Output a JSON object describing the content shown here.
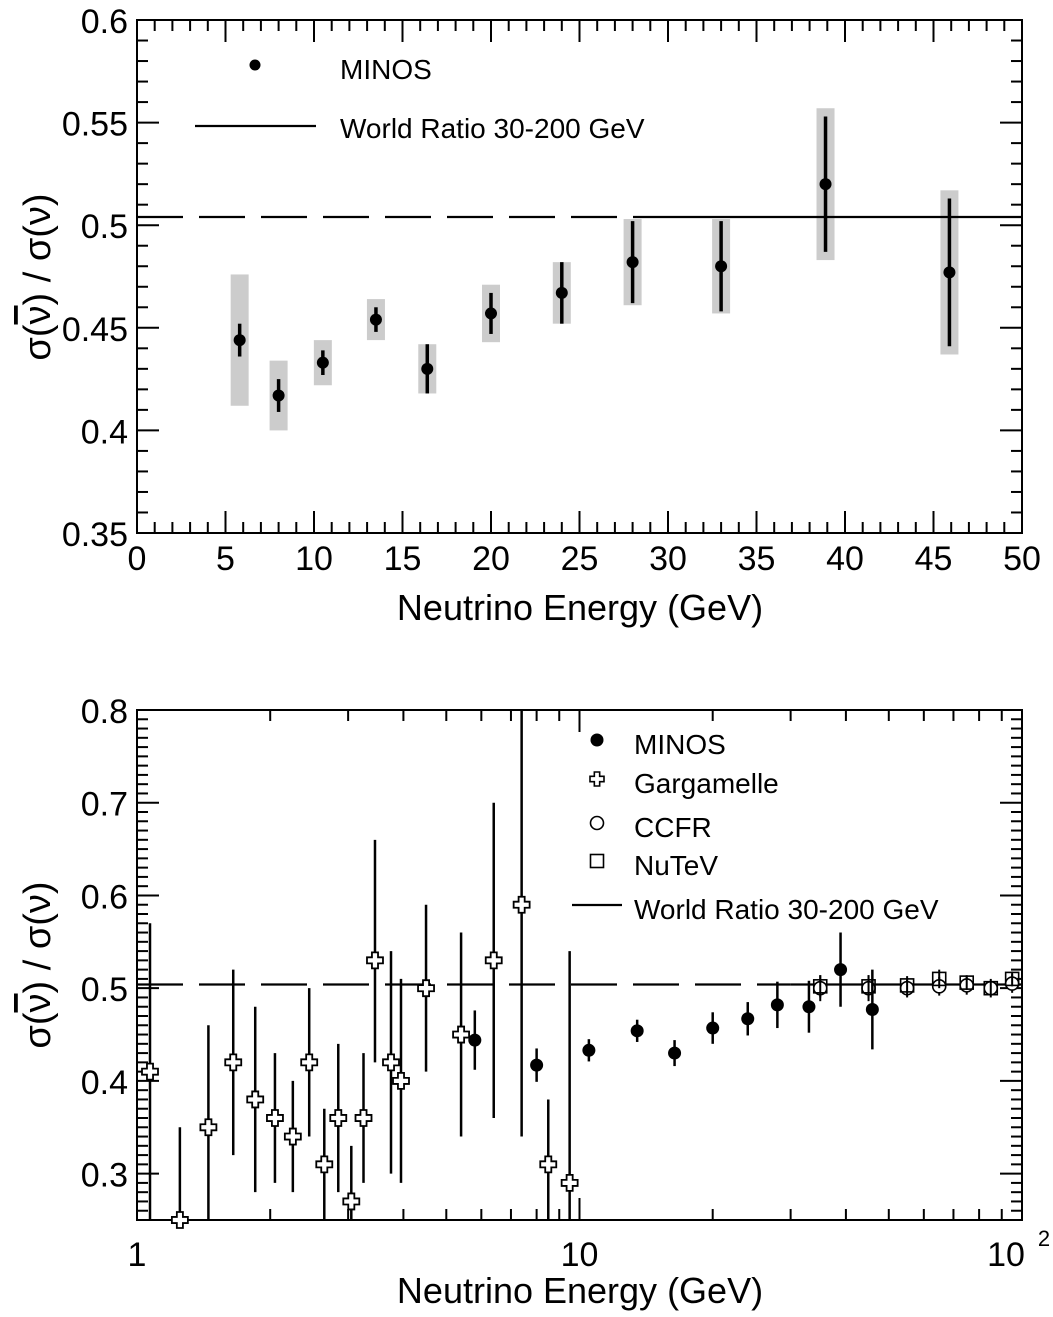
{
  "chart_data": [
    {
      "type": "scatter",
      "xlabel": "Neutrino Energy (GeV)",
      "ylabel_main": "σ(",
      "ylabel_nubar": "ν",
      "ylabel_mid": ") / σ(",
      "ylabel_nu": "ν",
      "ylabel_end": ")",
      "xlim": [
        0,
        50
      ],
      "ylim": [
        0.35,
        0.6
      ],
      "xticks": [
        "0",
        "5",
        "10",
        "15",
        "20",
        "25",
        "30",
        "35",
        "40",
        "45",
        "50"
      ],
      "xtick_values": [
        0,
        5,
        10,
        15,
        20,
        25,
        30,
        35,
        40,
        45,
        50
      ],
      "yticks": [
        "0.35",
        "0.4",
        "0.45",
        "0.5",
        "0.55",
        "0.6"
      ],
      "ytick_values": [
        0.35,
        0.4,
        0.45,
        0.5,
        0.55,
        0.6
      ],
      "legend": [
        {
          "label": "MINOS",
          "marker": "filled-circle"
        },
        {
          "label": "World Ratio 30-200 GeV",
          "marker": "line"
        }
      ],
      "world_ratio": 0.504,
      "world_ratio_solid_range": [
        30,
        50
      ],
      "series": [
        {
          "name": "MINOS",
          "points": [
            {
              "x": 5.8,
              "y": 0.444,
              "stat": 0.008,
              "syst": 0.032
            },
            {
              "x": 8.0,
              "y": 0.417,
              "stat": 0.008,
              "syst": 0.017
            },
            {
              "x": 10.5,
              "y": 0.433,
              "stat": 0.006,
              "syst": 0.011
            },
            {
              "x": 13.5,
              "y": 0.454,
              "stat": 0.006,
              "syst": 0.01
            },
            {
              "x": 16.4,
              "y": 0.43,
              "stat": 0.012,
              "syst": 0.012
            },
            {
              "x": 20.0,
              "y": 0.457,
              "stat": 0.01,
              "syst": 0.014
            },
            {
              "x": 24.0,
              "y": 0.467,
              "stat": 0.015,
              "syst": 0.015
            },
            {
              "x": 28.0,
              "y": 0.482,
              "stat": 0.02,
              "syst": 0.021
            },
            {
              "x": 33.0,
              "y": 0.48,
              "stat": 0.022,
              "syst": 0.023
            },
            {
              "x": 38.9,
              "y": 0.52,
              "stat": 0.033,
              "syst": 0.037
            },
            {
              "x": 45.9,
              "y": 0.477,
              "stat": 0.036,
              "syst": 0.04
            }
          ]
        }
      ]
    },
    {
      "type": "scatter",
      "xlabel": "Neutrino Energy (GeV)",
      "ylabel_main": "σ(",
      "ylabel_nubar": "ν",
      "ylabel_mid": ") / σ(",
      "ylabel_nu": "ν",
      "ylabel_end": ")",
      "xscale": "log",
      "xlim": [
        1,
        100
      ],
      "ylim": [
        0.25,
        0.8
      ],
      "xticks": [
        "1",
        "10",
        "10"
      ],
      "xtick_sup": "2",
      "xtick_values": [
        1,
        10,
        100
      ],
      "yticks": [
        "0.3",
        "0.4",
        "0.5",
        "0.6",
        "0.7",
        "0.8"
      ],
      "ytick_values": [
        0.3,
        0.4,
        0.5,
        0.6,
        0.7,
        0.8
      ],
      "legend": [
        {
          "label": "MINOS",
          "marker": "filled-circle"
        },
        {
          "label": "Gargamelle",
          "marker": "open-cross"
        },
        {
          "label": "CCFR",
          "marker": "open-circle"
        },
        {
          "label": "NuTeV",
          "marker": "open-square"
        },
        {
          "label": "World Ratio 30-200 GeV",
          "marker": "line"
        }
      ],
      "world_ratio": 0.504,
      "world_ratio_solid_range": [
        30,
        100
      ],
      "series": [
        {
          "name": "MINOS",
          "marker": "filled-circle",
          "points": [
            {
              "x": 5.8,
              "y": 0.444,
              "err": 0.032
            },
            {
              "x": 8.0,
              "y": 0.417,
              "err": 0.018
            },
            {
              "x": 10.5,
              "y": 0.433,
              "err": 0.012
            },
            {
              "x": 13.5,
              "y": 0.454,
              "err": 0.012
            },
            {
              "x": 16.4,
              "y": 0.43,
              "err": 0.014
            },
            {
              "x": 20.0,
              "y": 0.457,
              "err": 0.017
            },
            {
              "x": 24.0,
              "y": 0.467,
              "err": 0.018
            },
            {
              "x": 28.0,
              "y": 0.482,
              "err": 0.025
            },
            {
              "x": 33.0,
              "y": 0.48,
              "err": 0.028
            },
            {
              "x": 38.9,
              "y": 0.52,
              "err": 0.04
            },
            {
              "x": 45.9,
              "y": 0.477,
              "err": 0.043
            }
          ]
        },
        {
          "name": "Gargamelle",
          "marker": "open-cross",
          "points": [
            {
              "x": 1.07,
              "y": 0.41,
              "lo": 0.25,
              "hi": 0.57
            },
            {
              "x": 1.25,
              "y": 0.25,
              "lo": 0.25,
              "hi": 0.35
            },
            {
              "x": 1.45,
              "y": 0.35,
              "lo": 0.25,
              "hi": 0.46
            },
            {
              "x": 1.65,
              "y": 0.42,
              "lo": 0.32,
              "hi": 0.52
            },
            {
              "x": 1.85,
              "y": 0.38,
              "lo": 0.28,
              "hi": 0.48
            },
            {
              "x": 2.05,
              "y": 0.36,
              "lo": 0.29,
              "hi": 0.43
            },
            {
              "x": 2.25,
              "y": 0.34,
              "lo": 0.28,
              "hi": 0.4
            },
            {
              "x": 2.45,
              "y": 0.42,
              "lo": 0.34,
              "hi": 0.5
            },
            {
              "x": 2.65,
              "y": 0.31,
              "lo": 0.25,
              "hi": 0.37
            },
            {
              "x": 2.85,
              "y": 0.36,
              "lo": 0.28,
              "hi": 0.44
            },
            {
              "x": 3.05,
              "y": 0.27,
              "lo": 0.25,
              "hi": 0.33
            },
            {
              "x": 3.25,
              "y": 0.36,
              "lo": 0.29,
              "hi": 0.43
            },
            {
              "x": 3.45,
              "y": 0.53,
              "lo": 0.42,
              "hi": 0.66
            },
            {
              "x": 3.75,
              "y": 0.42,
              "lo": 0.3,
              "hi": 0.54
            },
            {
              "x": 3.95,
              "y": 0.4,
              "lo": 0.29,
              "hi": 0.51
            },
            {
              "x": 4.5,
              "y": 0.5,
              "lo": 0.41,
              "hi": 0.59
            },
            {
              "x": 5.4,
              "y": 0.45,
              "lo": 0.34,
              "hi": 0.56
            },
            {
              "x": 6.4,
              "y": 0.53,
              "lo": 0.36,
              "hi": 0.7
            },
            {
              "x": 7.4,
              "y": 0.59,
              "lo": 0.34,
              "hi": 0.8
            },
            {
              "x": 8.5,
              "y": 0.31,
              "lo": 0.25,
              "hi": 0.38
            },
            {
              "x": 9.5,
              "y": 0.29,
              "lo": 0.25,
              "hi": 0.54
            }
          ]
        },
        {
          "name": "CCFR",
          "marker": "open-circle",
          "points": [
            {
              "x": 35,
              "y": 0.5,
              "err": 0.014
            },
            {
              "x": 45,
              "y": 0.5,
              "err": 0.014
            },
            {
              "x": 55,
              "y": 0.5,
              "err": 0.01
            },
            {
              "x": 65,
              "y": 0.502,
              "err": 0.01
            },
            {
              "x": 75,
              "y": 0.503,
              "err": 0.01
            },
            {
              "x": 85,
              "y": 0.5,
              "err": 0.01
            },
            {
              "x": 95,
              "y": 0.505,
              "err": 0.01
            }
          ]
        },
        {
          "name": "NuTeV",
          "marker": "open-square",
          "points": [
            {
              "x": 35,
              "y": 0.502,
              "err": 0.012
            },
            {
              "x": 45,
              "y": 0.502,
              "err": 0.012
            },
            {
              "x": 55,
              "y": 0.503,
              "err": 0.01
            },
            {
              "x": 65,
              "y": 0.51,
              "err": 0.01
            },
            {
              "x": 75,
              "y": 0.506,
              "err": 0.008
            },
            {
              "x": 85,
              "y": 0.5,
              "err": 0.008
            },
            {
              "x": 95,
              "y": 0.51,
              "err": 0.008
            }
          ]
        }
      ]
    }
  ]
}
